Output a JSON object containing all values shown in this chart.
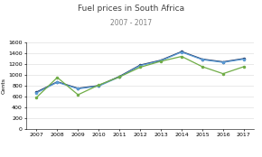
{
  "title": "Fuel prices in South Africa",
  "subtitle": "2007 - 2017",
  "ylabel": "Cents",
  "years": [
    2007,
    2008,
    2009,
    2010,
    2011,
    2012,
    2013,
    2014,
    2015,
    2016,
    2017
  ],
  "ulp93": [
    680,
    870,
    750,
    800,
    970,
    1180,
    1270,
    1430,
    1290,
    1240,
    1300
  ],
  "ulp95": [
    665,
    860,
    740,
    790,
    960,
    1170,
    1260,
    1420,
    1280,
    1230,
    1290
  ],
  "dsl005": [
    580,
    950,
    630,
    810,
    960,
    1140,
    1250,
    1340,
    1150,
    1020,
    1150
  ],
  "ulp93_color": "#203864",
  "ulp95_color": "#5b9bd5",
  "dsl_color": "#70ad47",
  "ylim": [
    0,
    1600
  ],
  "yticks": [
    0,
    200,
    400,
    600,
    800,
    1000,
    1200,
    1400,
    1600
  ],
  "bg_color": "#ffffff",
  "grid_color": "#d9d9d9",
  "title_fontsize": 6.5,
  "subtitle_fontsize": 5.5,
  "label_fontsize": 4.5,
  "tick_fontsize": 4.5,
  "legend_fontsize": 4.2,
  "line_width": 0.9,
  "marker_size": 1.5
}
